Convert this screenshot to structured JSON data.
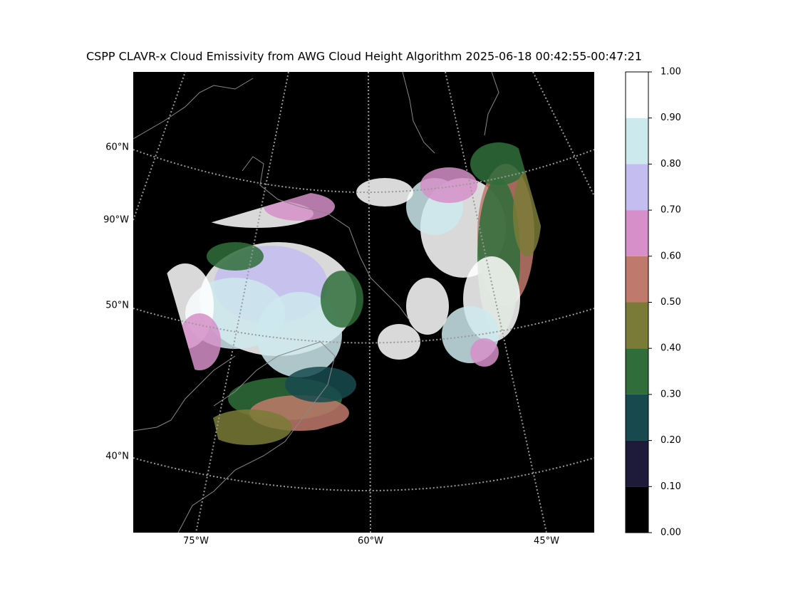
{
  "title": "CSPP CLAVR-x Cloud Emissivity from AWG Cloud Height Algorithm 2025-06-18 00:42:55-00:47:21",
  "map": {
    "lat_labels": [
      "60°N",
      "90°W",
      "50°N",
      "40°N"
    ],
    "lon_labels": [
      "75°W",
      "60°W",
      "45°W"
    ]
  },
  "colorbar": {
    "ticks": [
      {
        "value": 0,
        "label": "0.00"
      },
      {
        "value": 0.1,
        "label": "0.10"
      },
      {
        "value": 0.2,
        "label": "0.20"
      },
      {
        "value": 0.3,
        "label": "0.30"
      },
      {
        "value": 0.4,
        "label": "0.40"
      },
      {
        "value": 0.5,
        "label": "0.50"
      },
      {
        "value": 0.6,
        "label": "0.60"
      },
      {
        "value": 0.7,
        "label": "0.70"
      },
      {
        "value": 0.8,
        "label": "0.80"
      },
      {
        "value": 0.9,
        "label": "0.90"
      },
      {
        "value": 1,
        "label": "1.00"
      }
    ],
    "colors": [
      "#000000",
      "#1e1a3a",
      "#174a4f",
      "#2f6e3b",
      "#7a7b37",
      "#c07a6b",
      "#d68fc8",
      "#c3bdf0",
      "#cce9ed",
      "#ffffff"
    ]
  }
}
